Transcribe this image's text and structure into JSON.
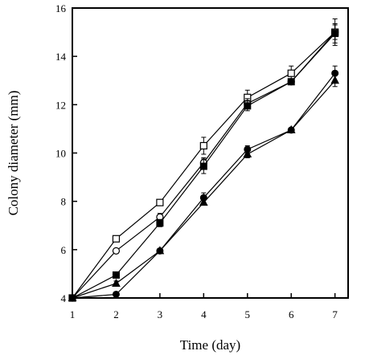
{
  "chart_data": {
    "type": "line",
    "title": "",
    "xlabel": "Time (day)",
    "ylabel": "Colony diameter (mm)",
    "xlim": [
      1,
      7.3
    ],
    "ylim": [
      4,
      16
    ],
    "xticks": [
      1,
      2,
      3,
      4,
      5,
      6,
      7
    ],
    "yticks": [
      4,
      6,
      8,
      10,
      12,
      14,
      16
    ],
    "grid": false,
    "legend": "none",
    "x": [
      1,
      2,
      3,
      4,
      5,
      6,
      7
    ],
    "series": [
      {
        "marker": "open-square",
        "values": [
          4.0,
          6.45,
          7.95,
          10.3,
          12.3,
          13.3,
          15.0
        ],
        "errors": [
          0,
          0.1,
          0.1,
          0.35,
          0.3,
          0.3,
          0.55
        ]
      },
      {
        "marker": "open-circle",
        "values": [
          4.0,
          5.95,
          7.35,
          9.6,
          12.05,
          12.95,
          15.0
        ],
        "errors": [
          0,
          0.1,
          0.15,
          0.2,
          0.2,
          0.1,
          0.3
        ]
      },
      {
        "marker": "filled-square",
        "values": [
          4.0,
          4.95,
          7.1,
          9.45,
          11.95,
          12.95,
          14.95
        ],
        "errors": [
          0,
          0.1,
          0.15,
          0.3,
          0.2,
          0.1,
          0.4
        ]
      },
      {
        "marker": "filled-circle",
        "values": [
          4.0,
          4.15,
          5.95,
          8.15,
          10.15,
          10.95,
          13.3
        ],
        "errors": [
          0,
          0.05,
          0.05,
          0.2,
          0.15,
          0.05,
          0.3
        ]
      },
      {
        "marker": "filled-triangle",
        "values": [
          4.0,
          4.6,
          5.95,
          7.95,
          9.95,
          10.95,
          13.0
        ],
        "errors": [
          0,
          0.1,
          0.05,
          0.1,
          0.15,
          0.05,
          0.25
        ]
      }
    ]
  }
}
